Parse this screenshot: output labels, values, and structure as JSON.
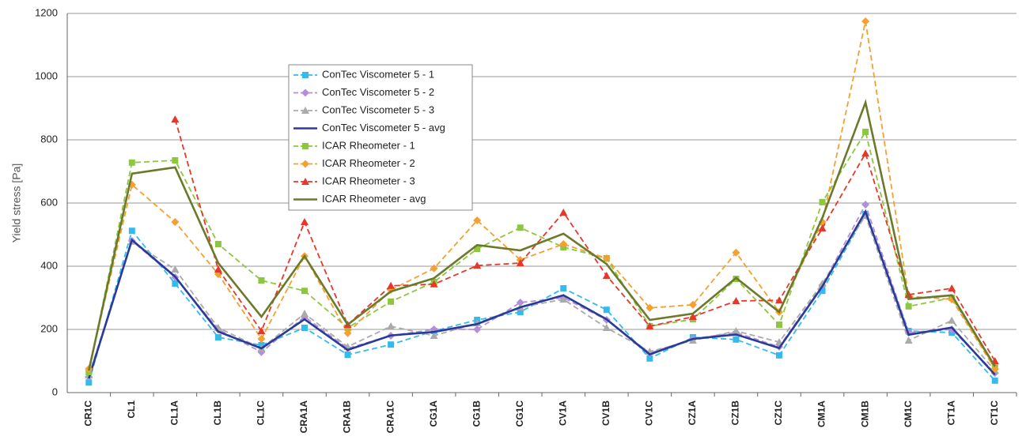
{
  "chart_data": {
    "type": "line",
    "y_label": "Yield stress  [Pa]",
    "categories": [
      "CR1C",
      "CL1",
      "CL1A",
      "CL1B",
      "CL1C",
      "CRA1A",
      "CRA1B",
      "CRA1C",
      "CG1A",
      "CG1B",
      "CG1C",
      "CV1A",
      "CV1B",
      "CV1C",
      "CZ1A",
      "CZ1B",
      "CZ1C",
      "CM1A",
      "CM1B",
      "CM1C",
      "CT1A",
      "CT1C"
    ],
    "ylim": [
      0,
      1200
    ],
    "yticks": [
      0,
      200,
      400,
      600,
      800,
      1000,
      1200
    ],
    "grid": true,
    "series": [
      {
        "name": "ConTec Viscometer 5 - 1",
        "color": "#33bbee",
        "dashed": true,
        "marker": "square",
        "values": [
          32,
          512,
          345,
          175,
          150,
          205,
          120,
          152,
          195,
          230,
          255,
          330,
          262,
          108,
          175,
          168,
          118,
          322,
          565,
          195,
          190,
          38
        ]
      },
      {
        "name": "ConTec Viscometer 5 - 2",
        "color": "#b38fd8",
        "dashed": true,
        "marker": "diamond",
        "values": [
          50,
          480,
          365,
          200,
          128,
          240,
          140,
          180,
          200,
          200,
          285,
          300,
          230,
          125,
          170,
          190,
          145,
          340,
          595,
          190,
          200,
          62
        ]
      },
      {
        "name": "ConTec Viscometer 5 - 3",
        "color": "#aaaaaa",
        "dashed": true,
        "marker": "triangle",
        "values": [
          55,
          478,
          390,
          205,
          140,
          250,
          145,
          210,
          180,
          220,
          270,
          295,
          205,
          130,
          165,
          195,
          160,
          345,
          560,
          165,
          228,
          70
        ]
      },
      {
        "name": "ConTec Viscometer 5 - avg",
        "color": "#2a3a9a",
        "dashed": false,
        "marker": "none",
        "values": [
          45,
          483,
          367,
          193,
          140,
          232,
          135,
          181,
          192,
          217,
          270,
          308,
          232,
          121,
          170,
          184,
          141,
          336,
          573,
          183,
          206,
          57
        ]
      },
      {
        "name": "ICAR Rheometer - 1",
        "color": "#8dc63f",
        "dashed": true,
        "marker": "square",
        "values": [
          65,
          728,
          735,
          470,
          355,
          322,
          205,
          288,
          350,
          455,
          522,
          460,
          425,
          210,
          232,
          360,
          215,
          603,
          825,
          273,
          300,
          80
        ]
      },
      {
        "name": "ICAR Rheometer - 2",
        "color": "#f5a030",
        "dashed": true,
        "marker": "diamond",
        "values": [
          75,
          658,
          540,
          375,
          170,
          432,
          188,
          325,
          393,
          545,
          420,
          470,
          425,
          268,
          278,
          443,
          255,
          540,
          1175,
          305,
          295,
          75
        ]
      },
      {
        "name": "ICAR Rheometer - 3",
        "color": "#e8372a",
        "dashed": true,
        "marker": "triangle",
        "values": [
          null,
          null,
          865,
          390,
          195,
          540,
          215,
          338,
          343,
          402,
          410,
          570,
          370,
          210,
          240,
          290,
          292,
          520,
          757,
          310,
          330,
          100
        ]
      },
      {
        "name": "ICAR Rheometer - avg",
        "color": "#6b7a2a",
        "dashed": false,
        "marker": "none",
        "values": [
          70,
          693,
          713,
          410,
          240,
          432,
          215,
          320,
          362,
          467,
          450,
          503,
          407,
          230,
          250,
          363,
          255,
          553,
          918,
          296,
          308,
          83
        ]
      }
    ]
  }
}
